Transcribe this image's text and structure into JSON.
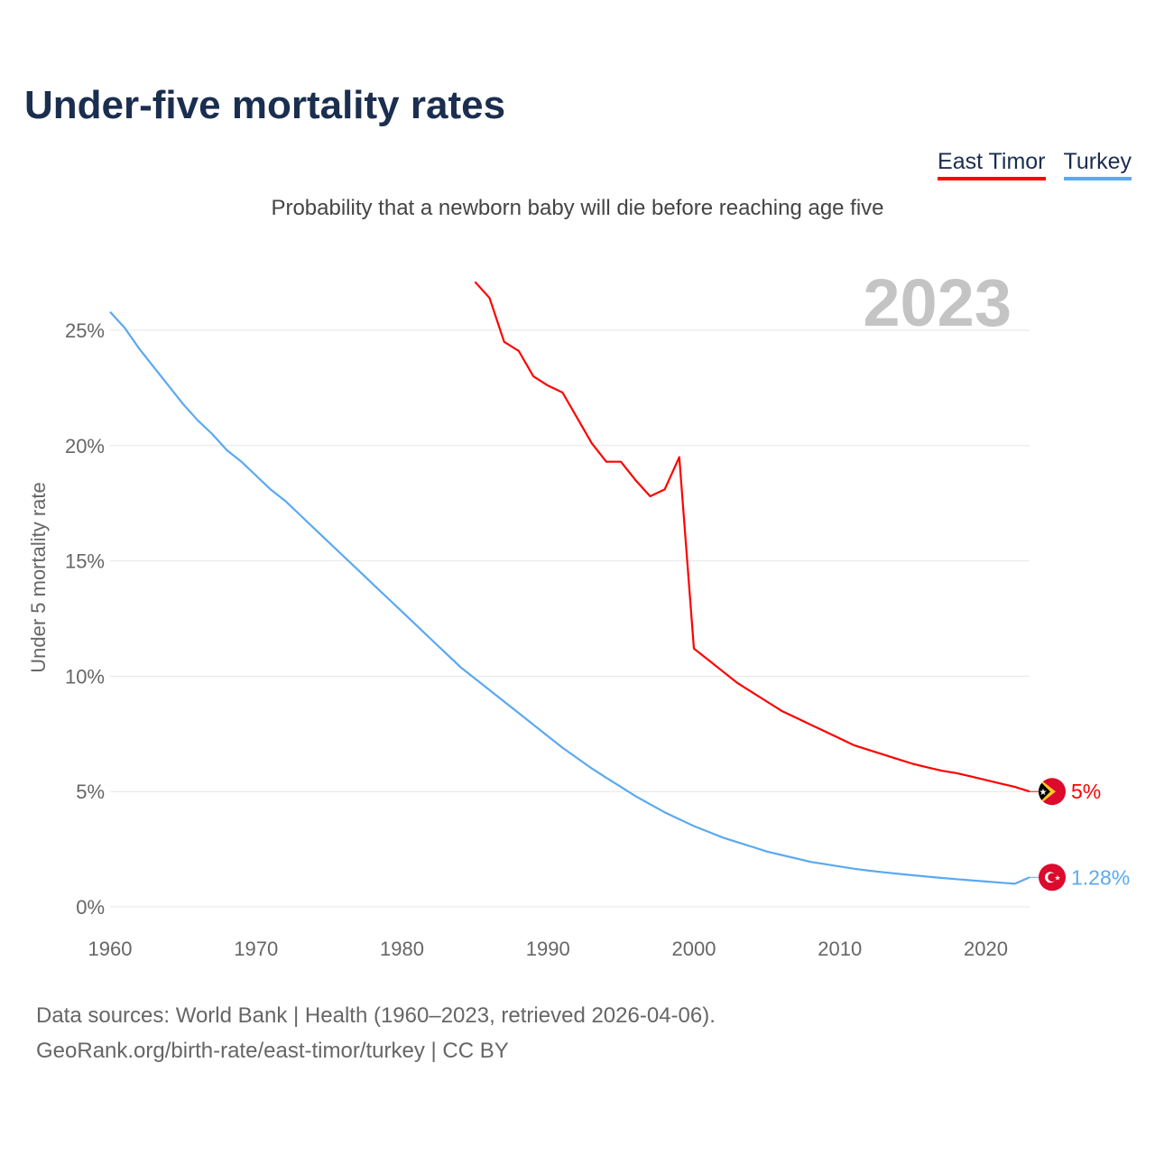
{
  "title": "Under-five mortality rates",
  "subtitle": "Probability that a newborn baby will die before reaching age five",
  "legend": [
    "East Timor",
    "Turkey"
  ],
  "source_line1": "Data sources: World Bank | Health (1960–2023, retrieved 2026-04-06).",
  "source_line2": "GeoRank.org/birth-rate/east-timor/turkey | CC BY",
  "chart_data": {
    "type": "line",
    "title": "Under-five mortality rates",
    "ylabel": "Under 5 mortality rate",
    "xlabel": "",
    "year_label": "2023",
    "xlim": [
      1960,
      2023
    ],
    "ylim": [
      0,
      25
    ],
    "xticks": [
      1960,
      1970,
      1980,
      1990,
      2000,
      2010,
      2020
    ],
    "yticks": [
      0,
      5,
      10,
      15,
      20,
      25
    ],
    "ytick_labels": [
      "0%",
      "5%",
      "10%",
      "15%",
      "20%",
      "25%"
    ],
    "grid": true,
    "legend_position": "top-right",
    "series": [
      {
        "name": "East Timor",
        "color": "#ff0000",
        "end_label": "5%",
        "x_start": 1985,
        "values": [
          27.1,
          26.4,
          24.5,
          24.1,
          23.0,
          22.6,
          22.3,
          21.2,
          20.1,
          19.3,
          19.3,
          18.5,
          17.8,
          18.1,
          19.5,
          11.2,
          10.7,
          10.2,
          9.7,
          9.3,
          8.9,
          8.5,
          8.2,
          7.9,
          7.6,
          7.3,
          7.0,
          6.8,
          6.6,
          6.4,
          6.2,
          6.05,
          5.9,
          5.8,
          5.65,
          5.5,
          5.35,
          5.2,
          5.0
        ]
      },
      {
        "name": "Turkey",
        "color": "#5aa9f0",
        "end_label": "1.28%",
        "x_start": 1960,
        "values": [
          25.8,
          25.1,
          24.2,
          23.4,
          22.6,
          21.8,
          21.1,
          20.5,
          19.8,
          19.3,
          18.7,
          18.1,
          17.6,
          17.0,
          16.4,
          15.8,
          15.2,
          14.6,
          14.0,
          13.4,
          12.8,
          12.2,
          11.6,
          11.0,
          10.4,
          9.9,
          9.4,
          8.9,
          8.4,
          7.9,
          7.4,
          6.9,
          6.45,
          6.0,
          5.6,
          5.2,
          4.8,
          4.45,
          4.1,
          3.8,
          3.5,
          3.25,
          3.0,
          2.8,
          2.6,
          2.4,
          2.25,
          2.1,
          1.95,
          1.85,
          1.75,
          1.65,
          1.57,
          1.5,
          1.43,
          1.37,
          1.31,
          1.25,
          1.2,
          1.15,
          1.1,
          1.05,
          1.0,
          1.28
        ]
      }
    ]
  }
}
